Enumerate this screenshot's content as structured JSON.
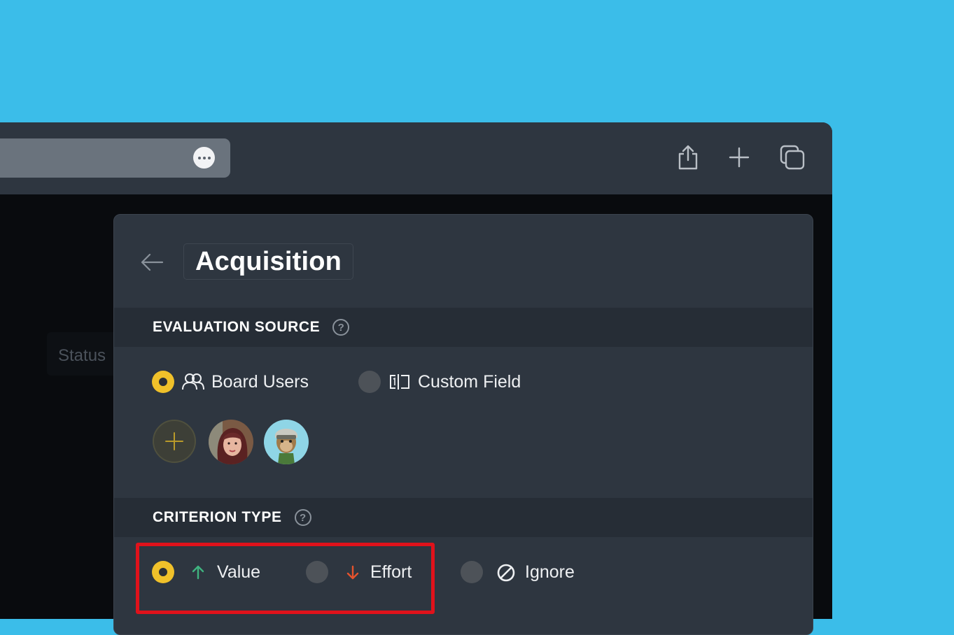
{
  "browser": {
    "more_icon": "ellipsis-icon",
    "share_icon": "share-icon",
    "new_tab_icon": "plus-icon",
    "tabs_icon": "tabs-overview-icon"
  },
  "background_page": {
    "status_text": "Status"
  },
  "panel": {
    "title": "Acquisition",
    "back_icon": "arrow-left-icon",
    "evaluation_source": {
      "header": "EVALUATION SOURCE",
      "options": [
        {
          "label": "Board Users",
          "icon": "users-icon",
          "selected": true
        },
        {
          "label": "Custom Field",
          "icon": "custom-field-icon",
          "selected": false
        }
      ],
      "users": [
        "user-avatar-woman",
        "user-avatar-ape"
      ]
    },
    "criterion_type": {
      "header": "CRITERION TYPE",
      "options": [
        {
          "label": "Value",
          "icon": "arrow-up-icon",
          "color": "#3fb37f",
          "selected": true
        },
        {
          "label": "Effort",
          "icon": "arrow-down-icon",
          "color": "#e5532d",
          "selected": false
        },
        {
          "label": "Ignore",
          "icon": "ban-icon",
          "selected": false
        }
      ]
    }
  },
  "colors": {
    "background": "#3bbde9",
    "accent": "#f0c12a",
    "highlight": "#e0121b"
  }
}
